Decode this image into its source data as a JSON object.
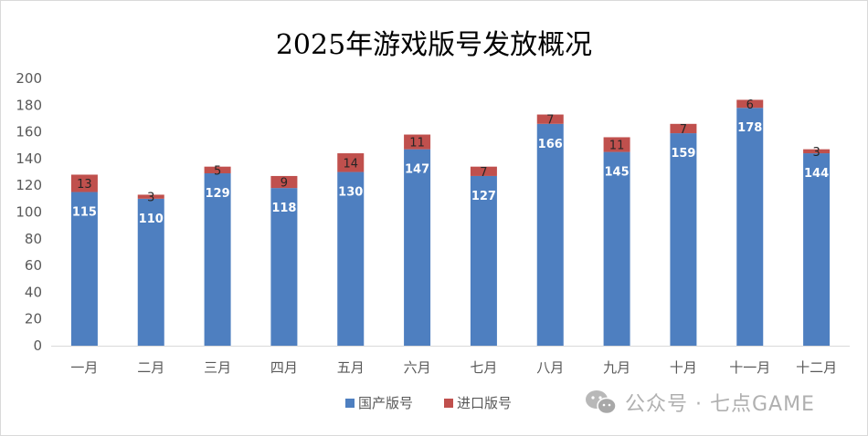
{
  "title": "2025年游戏版号发放概况",
  "chart_data": {
    "type": "bar",
    "stacked": true,
    "title": "2025年游戏版号发放概况",
    "categories": [
      "一月",
      "二月",
      "三月",
      "四月",
      "五月",
      "六月",
      "七月",
      "八月",
      "九月",
      "十月",
      "十一月",
      "十二月"
    ],
    "series": [
      {
        "name": "国产版号",
        "color": "#4e7fc0",
        "values": [
          115,
          110,
          129,
          118,
          130,
          147,
          127,
          166,
          145,
          159,
          178,
          144
        ]
      },
      {
        "name": "进口版号",
        "color": "#c0504d",
        "values": [
          13,
          3,
          5,
          9,
          14,
          11,
          7,
          7,
          11,
          7,
          6,
          3
        ]
      }
    ],
    "yticks": [
      "0",
      "20",
      "40",
      "60",
      "80",
      "100",
      "120",
      "140",
      "160",
      "180",
      "200"
    ],
    "ylim": [
      0,
      200
    ],
    "legend_position": "bottom",
    "grid": false
  },
  "watermark": {
    "text": "公众号 · 七点GAME",
    "icon": "wechat-icon"
  }
}
